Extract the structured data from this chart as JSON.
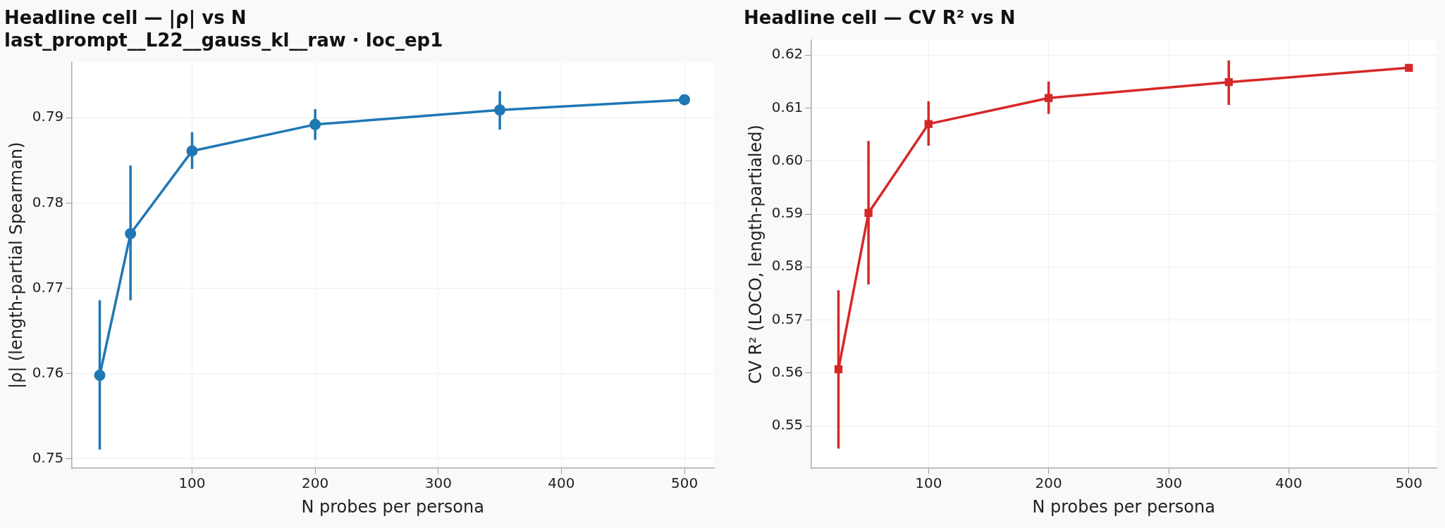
{
  "chart_data": [
    {
      "type": "line",
      "title": [
        "Headline cell — |ρ| vs N",
        "last_prompt__L22__gauss_kl__raw · loc_ep1"
      ],
      "xlabel": "N probes per persona",
      "ylabel": "|ρ| (length-partial Spearman)",
      "x": [
        25,
        50,
        100,
        200,
        350,
        500
      ],
      "series": [
        {
          "color": "#1f77b4",
          "values": [
            0.7598,
            0.7764,
            0.7861,
            0.7892,
            0.7909,
            0.7921
          ],
          "errors": [
            [
              0.7511,
              0.7686
            ],
            [
              0.7686,
              0.7844
            ],
            [
              0.784,
              0.7883
            ],
            [
              0.7874,
              0.791
            ],
            [
              0.7886,
              0.7931
            ],
            null
          ]
        }
      ],
      "xlim": [
        2,
        524
      ],
      "xticks": [
        100,
        200,
        300,
        400,
        500
      ],
      "ylim": [
        0.7489,
        0.7965
      ],
      "yticks": [
        0.75,
        0.76,
        0.77,
        0.78,
        0.79
      ],
      "grid": true,
      "marker": "circle",
      "line_style": "solid"
    },
    {
      "type": "line",
      "title": "Headline cell — CV R² vs N",
      "xlabel": "N probes per persona",
      "ylabel": "CV R² (LOCO, length-partialed)",
      "x": [
        25,
        50,
        100,
        200,
        350,
        500
      ],
      "series": [
        {
          "color": "#d62728",
          "values": [
            0.5607,
            0.5902,
            0.607,
            0.6119,
            0.6149,
            0.6176
          ],
          "errors": [
            [
              0.5457,
              0.5756
            ],
            [
              0.5767,
              0.6038
            ],
            [
              0.6029,
              0.6113
            ],
            [
              0.6089,
              0.615
            ],
            [
              0.6106,
              0.619
            ],
            null
          ]
        }
      ],
      "xlim": [
        2,
        523
      ],
      "xticks": [
        100,
        200,
        300,
        400,
        500
      ],
      "ylim": [
        0.542,
        0.6228
      ],
      "yticks": [
        0.55,
        0.56,
        0.57,
        0.58,
        0.59,
        {
          "value": 0.6,
          "label": "0.60"
        },
        0.61,
        0.62
      ],
      "grid": true,
      "marker": "square",
      "line_style": "solid"
    }
  ]
}
